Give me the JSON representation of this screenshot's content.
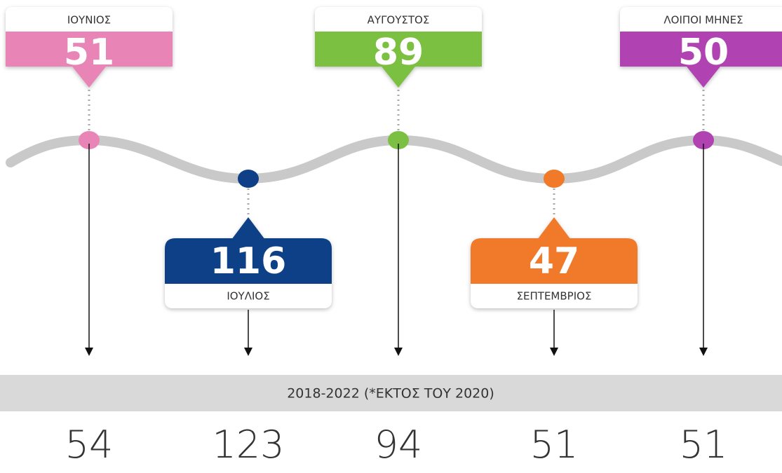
{
  "items": [
    {
      "label": "ΙΟΥΝΙΟΣ",
      "value": "51",
      "color": "#e884b6",
      "comparison": "54"
    },
    {
      "label": "ΙΟΥΛΙΟΣ",
      "value": "116",
      "color": "#0e3f87",
      "comparison": "123"
    },
    {
      "label": "ΑΥΓΟΥΣΤΟΣ",
      "value": "89",
      "color": "#7cc043",
      "comparison": "94"
    },
    {
      "label": "ΣΕΠΤΕΜΒΡΙΟΣ",
      "value": "47",
      "color": "#f07a2a",
      "comparison": "51"
    },
    {
      "label": "ΛΟΙΠΟΙ ΜΗΝΕΣ",
      "value": "50",
      "color": "#b142b1",
      "comparison": "51"
    }
  ],
  "period": "2018-2022 (*ΕΚΤΟΣ ΤΟΥ 2020)"
}
